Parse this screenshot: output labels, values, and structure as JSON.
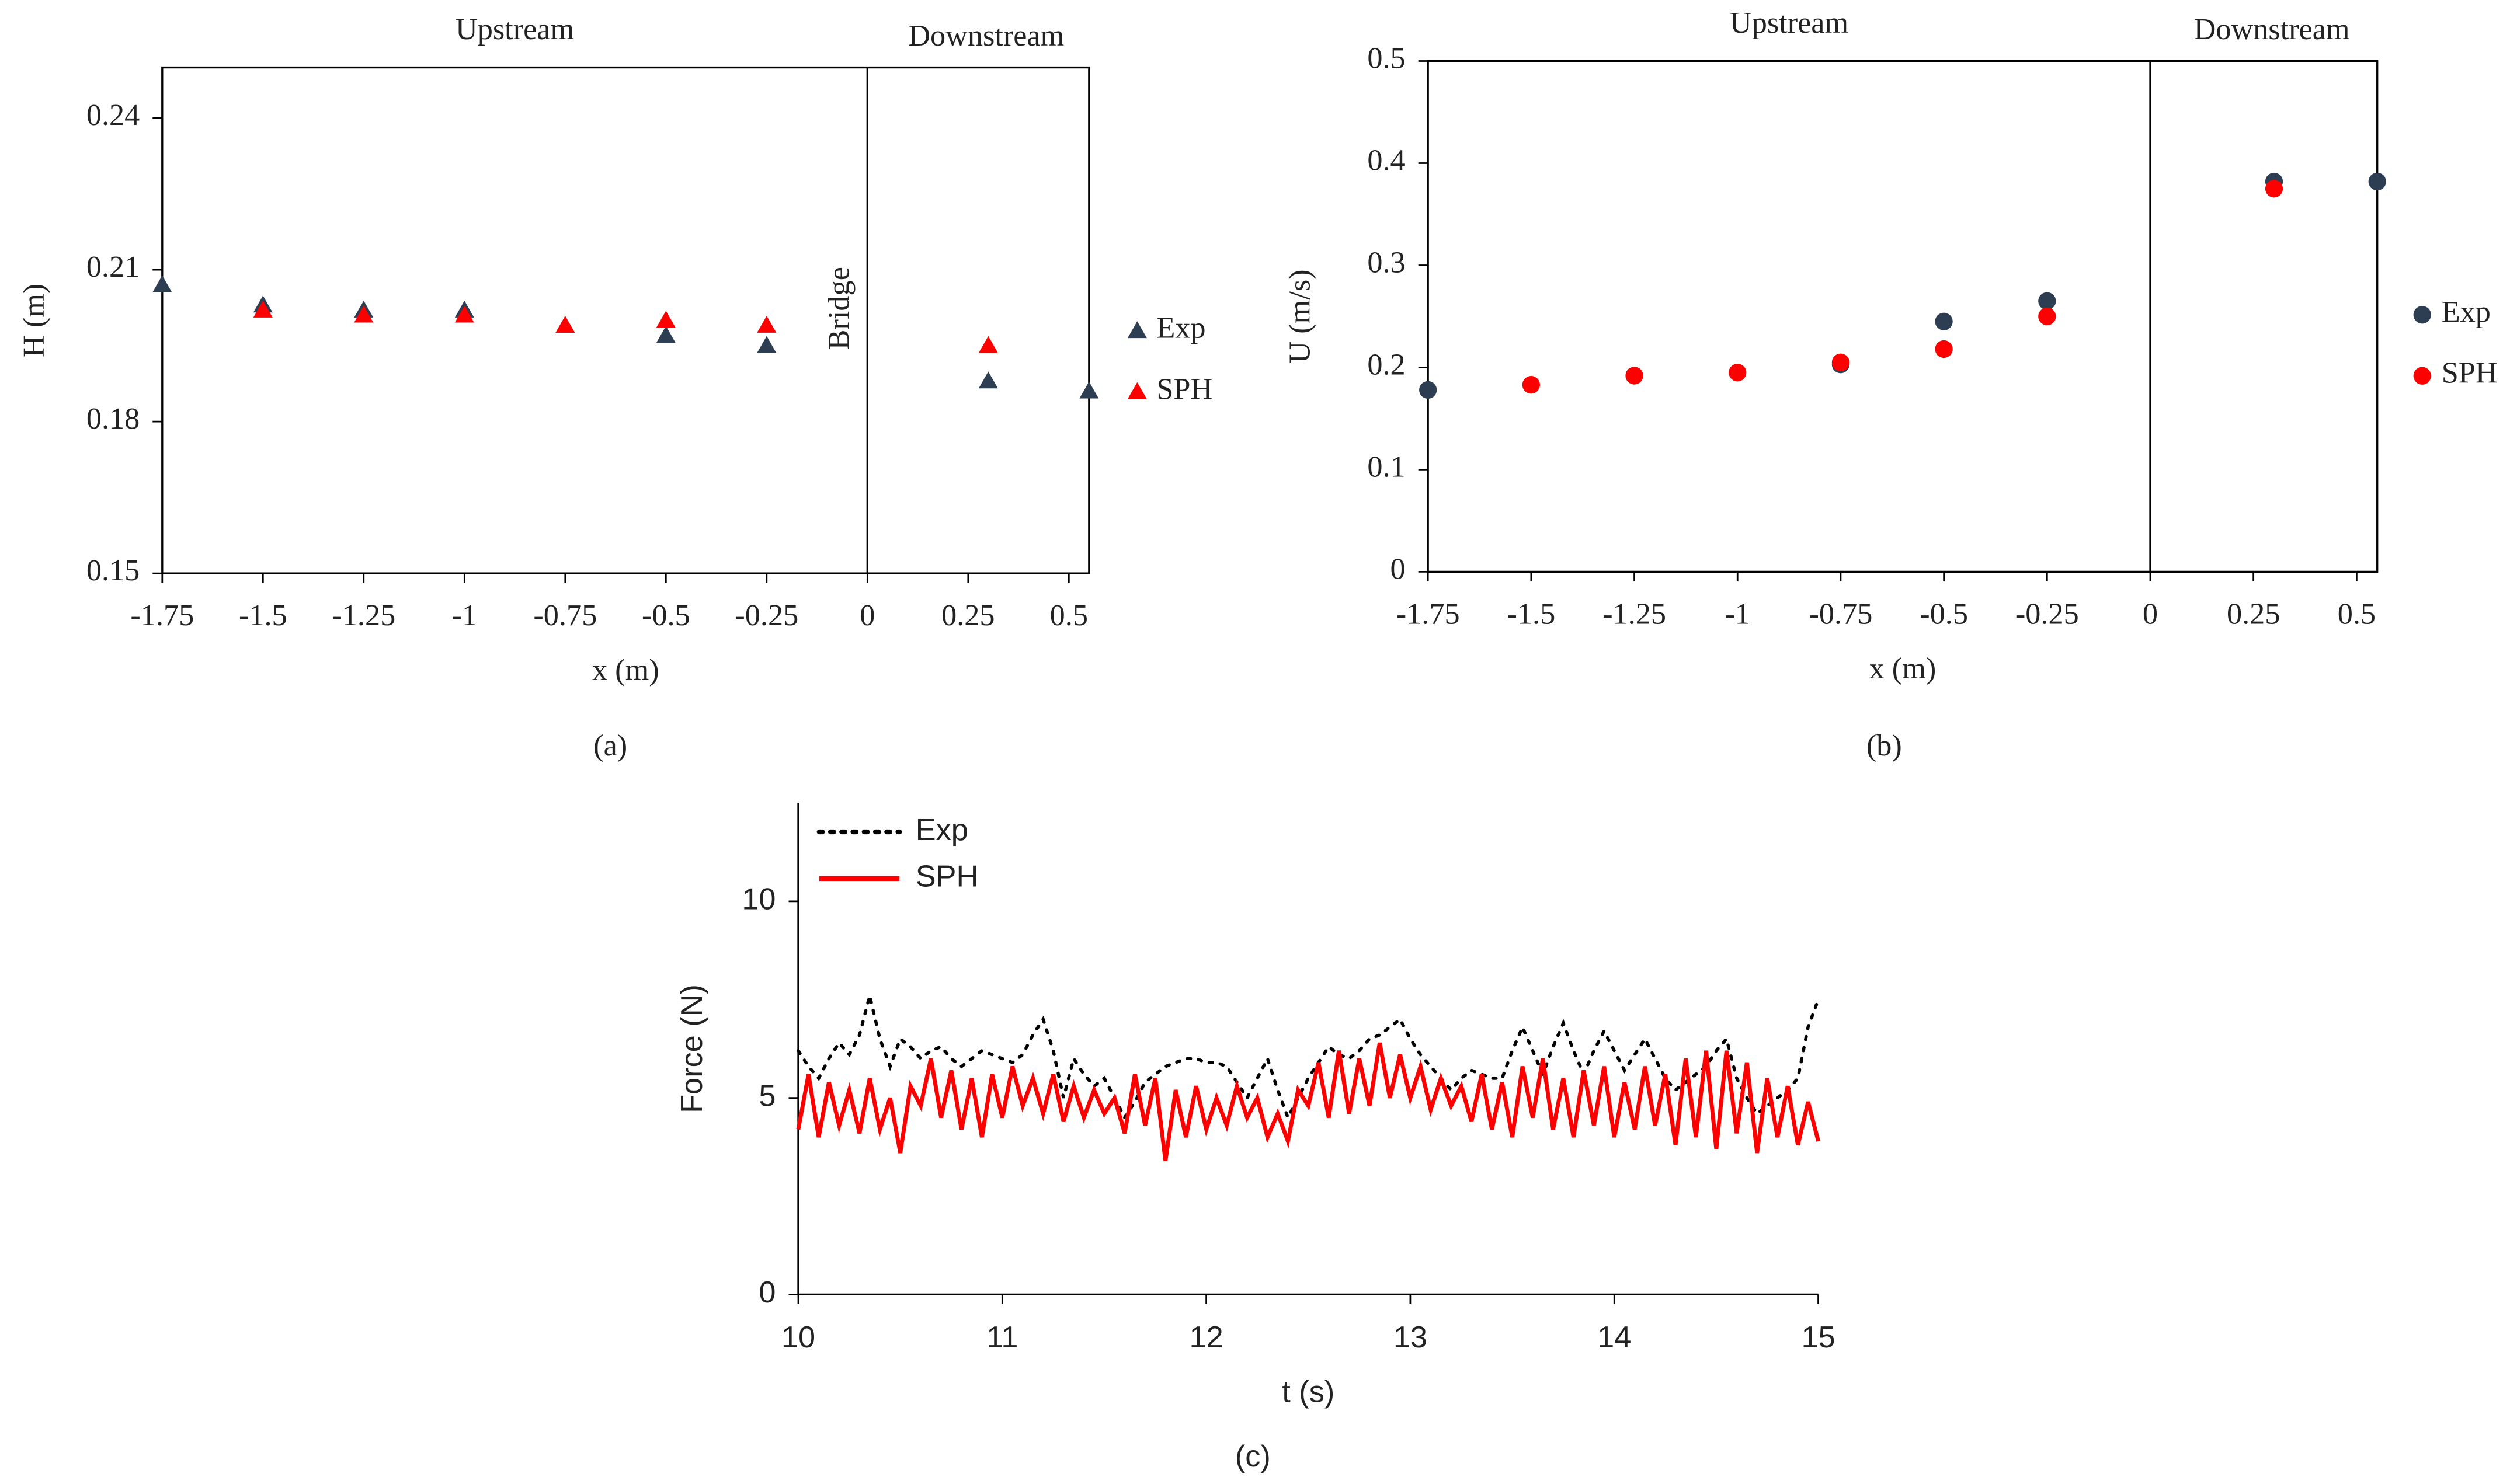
{
  "chart_data": [
    {
      "type": "scatter",
      "marker": "triangle",
      "label": "(a)",
      "xlabel": "x (m)",
      "ylabel": "H (m)",
      "x": [
        -1.75,
        -1.5,
        -1.25,
        -1,
        -0.75,
        -0.5,
        -0.25,
        0.3,
        0.55
      ],
      "series": [
        {
          "name": "Exp",
          "color": "#2e3e52",
          "values": [
            0.207,
            0.203,
            0.202,
            0.202,
            0.199,
            0.197,
            0.195,
            0.188,
            0.186
          ]
        },
        {
          "name": "SPH",
          "color": "#ff0000",
          "values": [
            null,
            0.202,
            0.201,
            0.201,
            0.199,
            0.2,
            0.199,
            0.195,
            null
          ]
        }
      ],
      "xlim": [
        -1.75,
        0.55
      ],
      "xticks": [
        -1.75,
        -1.5,
        -1.25,
        -1,
        -0.75,
        -0.5,
        -0.25,
        0,
        0.25,
        0.5
      ],
      "ylim": [
        0.15,
        0.25
      ],
      "yticks": [
        0.15,
        0.18,
        0.21,
        0.24
      ],
      "divider_x": 0,
      "annotations": [
        "Upstream",
        "Downstream",
        "Bridge"
      ],
      "legend": "right"
    },
    {
      "type": "scatter",
      "marker": "circle",
      "label": "(b)",
      "xlabel": "x (m)",
      "ylabel": "U (m/s)",
      "x": [
        -1.75,
        -1.5,
        -1.25,
        -1,
        -0.75,
        -0.5,
        -0.25,
        0.3,
        0.55
      ],
      "series": [
        {
          "name": "Exp",
          "color": "#2e3e52",
          "values": [
            0.178,
            null,
            0.192,
            null,
            0.203,
            0.245,
            0.265,
            0.382,
            0.382
          ]
        },
        {
          "name": "SPH",
          "color": "#ff0000",
          "values": [
            null,
            0.183,
            0.192,
            0.195,
            0.205,
            0.218,
            0.25,
            0.375,
            null
          ]
        }
      ],
      "xlim": [
        -1.75,
        0.55
      ],
      "xticks": [
        -1.75,
        -1.5,
        -1.25,
        -1,
        -0.75,
        -0.5,
        -0.25,
        0,
        0.25,
        0.5
      ],
      "ylim": [
        0,
        0.5
      ],
      "yticks": [
        0,
        0.1,
        0.2,
        0.3,
        0.4,
        0.5
      ],
      "divider_x": 0,
      "annotations": [
        "Upstream",
        "Downstream"
      ],
      "legend": "right"
    },
    {
      "type": "line",
      "label": "(c)",
      "xlabel": "t (s)",
      "ylabel": "Force (N)",
      "x": [
        10,
        10.05,
        10.1,
        10.15,
        10.2,
        10.25,
        10.3,
        10.35,
        10.4,
        10.45,
        10.5,
        10.55,
        10.6,
        10.65,
        10.7,
        10.75,
        10.8,
        10.85,
        10.9,
        10.95,
        11,
        11.05,
        11.1,
        11.15,
        11.2,
        11.25,
        11.3,
        11.35,
        11.4,
        11.45,
        11.5,
        11.55,
        11.6,
        11.65,
        11.7,
        11.75,
        11.8,
        11.85,
        11.9,
        11.95,
        12,
        12.05,
        12.1,
        12.15,
        12.2,
        12.25,
        12.3,
        12.35,
        12.4,
        12.45,
        12.5,
        12.55,
        12.6,
        12.65,
        12.7,
        12.75,
        12.8,
        12.85,
        12.9,
        12.95,
        13,
        13.05,
        13.1,
        13.15,
        13.2,
        13.25,
        13.3,
        13.35,
        13.4,
        13.45,
        13.5,
        13.55,
        13.6,
        13.65,
        13.7,
        13.75,
        13.8,
        13.85,
        13.9,
        13.95,
        14,
        14.05,
        14.1,
        14.15,
        14.2,
        14.25,
        14.3,
        14.35,
        14.4,
        14.45,
        14.5,
        14.55,
        14.6,
        14.65,
        14.7,
        14.75,
        14.8,
        14.85,
        14.9,
        14.95,
        15
      ],
      "series": [
        {
          "name": "Exp",
          "color": "#000000",
          "dash": "dotted",
          "values": [
            6.2,
            5.8,
            5.5,
            6.0,
            6.4,
            6.1,
            6.6,
            7.6,
            6.5,
            5.8,
            6.5,
            6.3,
            6.0,
            6.2,
            6.3,
            6.0,
            5.8,
            6.0,
            6.2,
            6.1,
            6.0,
            5.9,
            6.1,
            6.6,
            7.0,
            6.2,
            5.0,
            6.0,
            5.6,
            5.3,
            5.5,
            5.0,
            4.5,
            4.9,
            5.4,
            5.6,
            5.8,
            5.9,
            6.0,
            6.0,
            5.9,
            5.9,
            5.8,
            5.4,
            5.0,
            5.5,
            6.0,
            5.2,
            4.5,
            5.0,
            5.5,
            5.9,
            6.3,
            6.1,
            6.0,
            6.2,
            6.5,
            6.6,
            6.8,
            7.0,
            6.5,
            6.1,
            5.8,
            5.5,
            5.2,
            5.5,
            5.7,
            5.6,
            5.5,
            5.5,
            6.2,
            6.8,
            6.2,
            5.6,
            6.3,
            6.9,
            6.2,
            5.6,
            6.2,
            6.7,
            6.2,
            5.7,
            6.1,
            6.5,
            6.0,
            5.5,
            5.2,
            5.4,
            5.6,
            5.8,
            6.2,
            6.5,
            5.5,
            5.0,
            4.6,
            4.8,
            5.0,
            5.2,
            5.5,
            6.8,
            7.5
          ]
        },
        {
          "name": "SPH",
          "color": "#ff0000",
          "dash": "solid",
          "values": [
            4.2,
            5.6,
            4.0,
            5.4,
            4.3,
            5.2,
            4.1,
            5.5,
            4.2,
            5.0,
            3.6,
            5.3,
            4.8,
            6.0,
            4.5,
            5.7,
            4.2,
            5.5,
            4.0,
            5.6,
            4.5,
            5.8,
            4.8,
            5.5,
            4.6,
            5.6,
            4.4,
            5.3,
            4.5,
            5.2,
            4.6,
            5.0,
            4.1,
            5.6,
            4.3,
            5.5,
            3.4,
            5.2,
            4.0,
            5.3,
            4.2,
            5.0,
            4.3,
            5.3,
            4.5,
            5.0,
            4.0,
            4.6,
            3.9,
            5.2,
            4.8,
            5.9,
            4.5,
            6.2,
            4.6,
            6.0,
            4.8,
            6.4,
            5.0,
            6.1,
            5.0,
            5.8,
            4.7,
            5.5,
            4.8,
            5.3,
            4.4,
            5.6,
            4.2,
            5.4,
            4.0,
            5.8,
            4.5,
            6.0,
            4.2,
            5.5,
            4.0,
            5.7,
            4.3,
            5.8,
            4.0,
            5.4,
            4.2,
            5.8,
            4.3,
            5.6,
            3.8,
            6.0,
            4.0,
            6.2,
            3.7,
            6.2,
            4.1,
            5.9,
            3.6,
            5.5,
            4.0,
            5.3,
            3.8,
            4.9,
            3.9
          ]
        }
      ],
      "xlim": [
        10,
        15
      ],
      "xticks": [
        10,
        11,
        12,
        13,
        14,
        15
      ],
      "ylim": [
        0,
        12.5
      ],
      "yticks": [
        0,
        5,
        10
      ],
      "legend": "upper left"
    }
  ]
}
